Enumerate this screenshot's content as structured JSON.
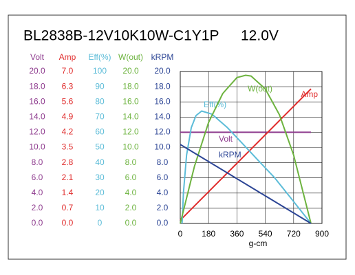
{
  "chart_data": {
    "type": "line",
    "title": "BL2838B-12V10K10W-C1Y1P",
    "subtitle": "12.0V",
    "xlabel": "g-cm",
    "xlim": [
      0,
      900
    ],
    "xticks": [
      0,
      180,
      360,
      540,
      720,
      900
    ],
    "grid": true,
    "series": [
      {
        "name": "Volt",
        "color": "#8e3b8e",
        "ylim": [
          0,
          20
        ],
        "yticks": [
          {
            "value": 20,
            "label": "20.0"
          },
          {
            "value": 18,
            "label": "18.0"
          },
          {
            "value": 16,
            "label": "16.0"
          },
          {
            "value": 14,
            "label": "14.0"
          },
          {
            "value": 12,
            "label": "12.0"
          },
          {
            "value": 10,
            "label": "10.0"
          },
          {
            "value": 8,
            "label": "8.0"
          },
          {
            "value": 6,
            "label": "6.0"
          },
          {
            "value": 4,
            "label": "4.0"
          },
          {
            "value": 2,
            "label": "2.0"
          },
          {
            "value": 0,
            "label": "0.0"
          }
        ],
        "x": [
          0,
          830
        ],
        "values": [
          12.0,
          12.0
        ]
      },
      {
        "name": "Amp",
        "color": "#e02c2c",
        "ylim": [
          0,
          7
        ],
        "yticks": [
          {
            "value": 7,
            "label": "7.0"
          },
          {
            "value": 6.3,
            "label": "6.3"
          },
          {
            "value": 5.6,
            "label": "5.6"
          },
          {
            "value": 4.9,
            "label": "4.9"
          },
          {
            "value": 4.2,
            "label": "4.2"
          },
          {
            "value": 3.5,
            "label": "3.5"
          },
          {
            "value": 2.8,
            "label": "2.8"
          },
          {
            "value": 2.1,
            "label": "2.1"
          },
          {
            "value": 1.4,
            "label": "1.4"
          },
          {
            "value": 0.7,
            "label": "0.7"
          },
          {
            "value": 0,
            "label": "0.0"
          }
        ],
        "x": [
          0,
          830
        ],
        "values": [
          0.15,
          6.2
        ]
      },
      {
        "name": "Eff(%)",
        "color": "#5cbcd8",
        "ylim": [
          0,
          100
        ],
        "yticks": [
          100,
          90,
          80,
          70,
          60,
          50,
          40,
          30,
          20,
          10,
          0
        ],
        "x": [
          12,
          20,
          40,
          70,
          100,
          136,
          200,
          300,
          400,
          500,
          600,
          700,
          830
        ],
        "values": [
          0,
          20,
          45,
          63,
          71,
          74,
          72,
          63,
          52,
          41,
          30,
          17,
          0
        ]
      },
      {
        "name": "W(out)",
        "color": "#6db33f",
        "ylim": [
          0,
          20
        ],
        "yticks": [
          {
            "value": 20,
            "label": "20.0"
          },
          {
            "value": 18,
            "label": "18.0"
          },
          {
            "value": 16,
            "label": "16.0"
          },
          {
            "value": 14,
            "label": "14.0"
          },
          {
            "value": 12,
            "label": "12.0"
          },
          {
            "value": 10,
            "label": "10.0"
          },
          {
            "value": 8,
            "label": "8.0"
          },
          {
            "value": 6,
            "label": "6.0"
          },
          {
            "value": 4,
            "label": "4.0"
          },
          {
            "value": 2,
            "label": "2.0"
          },
          {
            "value": 0,
            "label": "0.0"
          }
        ],
        "x": [
          0,
          90,
          180,
          270,
          360,
          415,
          450,
          540,
          630,
          720,
          830
        ],
        "values": [
          0,
          7.5,
          13.3,
          17.1,
          19.2,
          19.5,
          19.4,
          17.7,
          14.3,
          9.0,
          0
        ]
      },
      {
        "name": "kRPM",
        "color": "#2c4595",
        "ylim": [
          0,
          20
        ],
        "yticks": [
          {
            "value": 20,
            "label": "20.0"
          },
          {
            "value": 18,
            "label": "18.0"
          },
          {
            "value": 16,
            "label": "16.0"
          },
          {
            "value": 14,
            "label": "14.0"
          },
          {
            "value": 12,
            "label": "12.0"
          },
          {
            "value": 10,
            "label": "10.0"
          },
          {
            "value": 8,
            "label": "8.0"
          },
          {
            "value": 6,
            "label": "6.0"
          },
          {
            "value": 4,
            "label": "4.0"
          },
          {
            "value": 2,
            "label": "2.0"
          },
          {
            "value": 0,
            "label": "0.0"
          }
        ],
        "x": [
          0,
          830
        ],
        "values": [
          10.4,
          0
        ]
      }
    ]
  }
}
